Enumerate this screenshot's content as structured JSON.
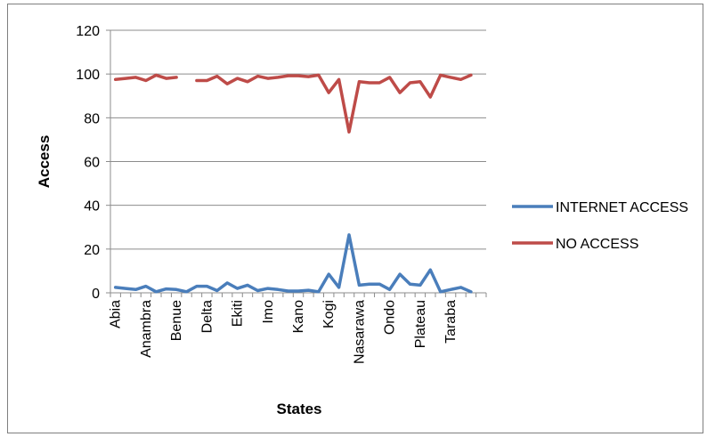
{
  "chart_data": {
    "type": "line",
    "xlabel": "States",
    "ylabel": "Access",
    "ylim": [
      0,
      120
    ],
    "yticks": [
      0,
      20,
      40,
      60,
      80,
      100,
      120
    ],
    "grid": true,
    "legend_position": "right",
    "num_categories": 37,
    "tick_labels": [
      {
        "index": 0,
        "label": "Abia"
      },
      {
        "index": 3,
        "label": "Anambra"
      },
      {
        "index": 6,
        "label": "Benue"
      },
      {
        "index": 9,
        "label": "Delta"
      },
      {
        "index": 12,
        "label": "Ekiti"
      },
      {
        "index": 15,
        "label": "Imo"
      },
      {
        "index": 18,
        "label": "Kano"
      },
      {
        "index": 21,
        "label": "Kogi"
      },
      {
        "index": 24,
        "label": "Nasarawa"
      },
      {
        "index": 27,
        "label": "Ondo"
      },
      {
        "index": 30,
        "label": "Plateau"
      },
      {
        "index": 33,
        "label": "Taraba"
      }
    ],
    "series": [
      {
        "name": "INTERNET ACCESS",
        "color": "#4a7ebb",
        "values": [
          2.5,
          2,
          1.5,
          3,
          0.5,
          1.8,
          1.5,
          0.5,
          3,
          3,
          1,
          4.5,
          2,
          3.5,
          1,
          2,
          1.5,
          0.8,
          0.8,
          1.2,
          0.5,
          8.5,
          2.5,
          26.5,
          3.5,
          4,
          4,
          1.5,
          8.5,
          4,
          3.5,
          10.5,
          0.5,
          1.5,
          2.5,
          0.5,
          null
        ]
      },
      {
        "name": "NO ACCESS",
        "color": "#be4b48",
        "values": [
          97.5,
          98,
          98.5,
          97,
          99.5,
          98,
          98.5,
          null,
          97,
          97,
          99,
          95.5,
          98,
          96.5,
          99,
          98,
          98.5,
          99.2,
          99.2,
          98.8,
          99.5,
          91.5,
          97.5,
          73.5,
          96.5,
          96,
          96,
          98.5,
          91.5,
          96,
          96.5,
          89.5,
          99.5,
          98.5,
          97.5,
          99.5,
          null
        ]
      }
    ]
  }
}
